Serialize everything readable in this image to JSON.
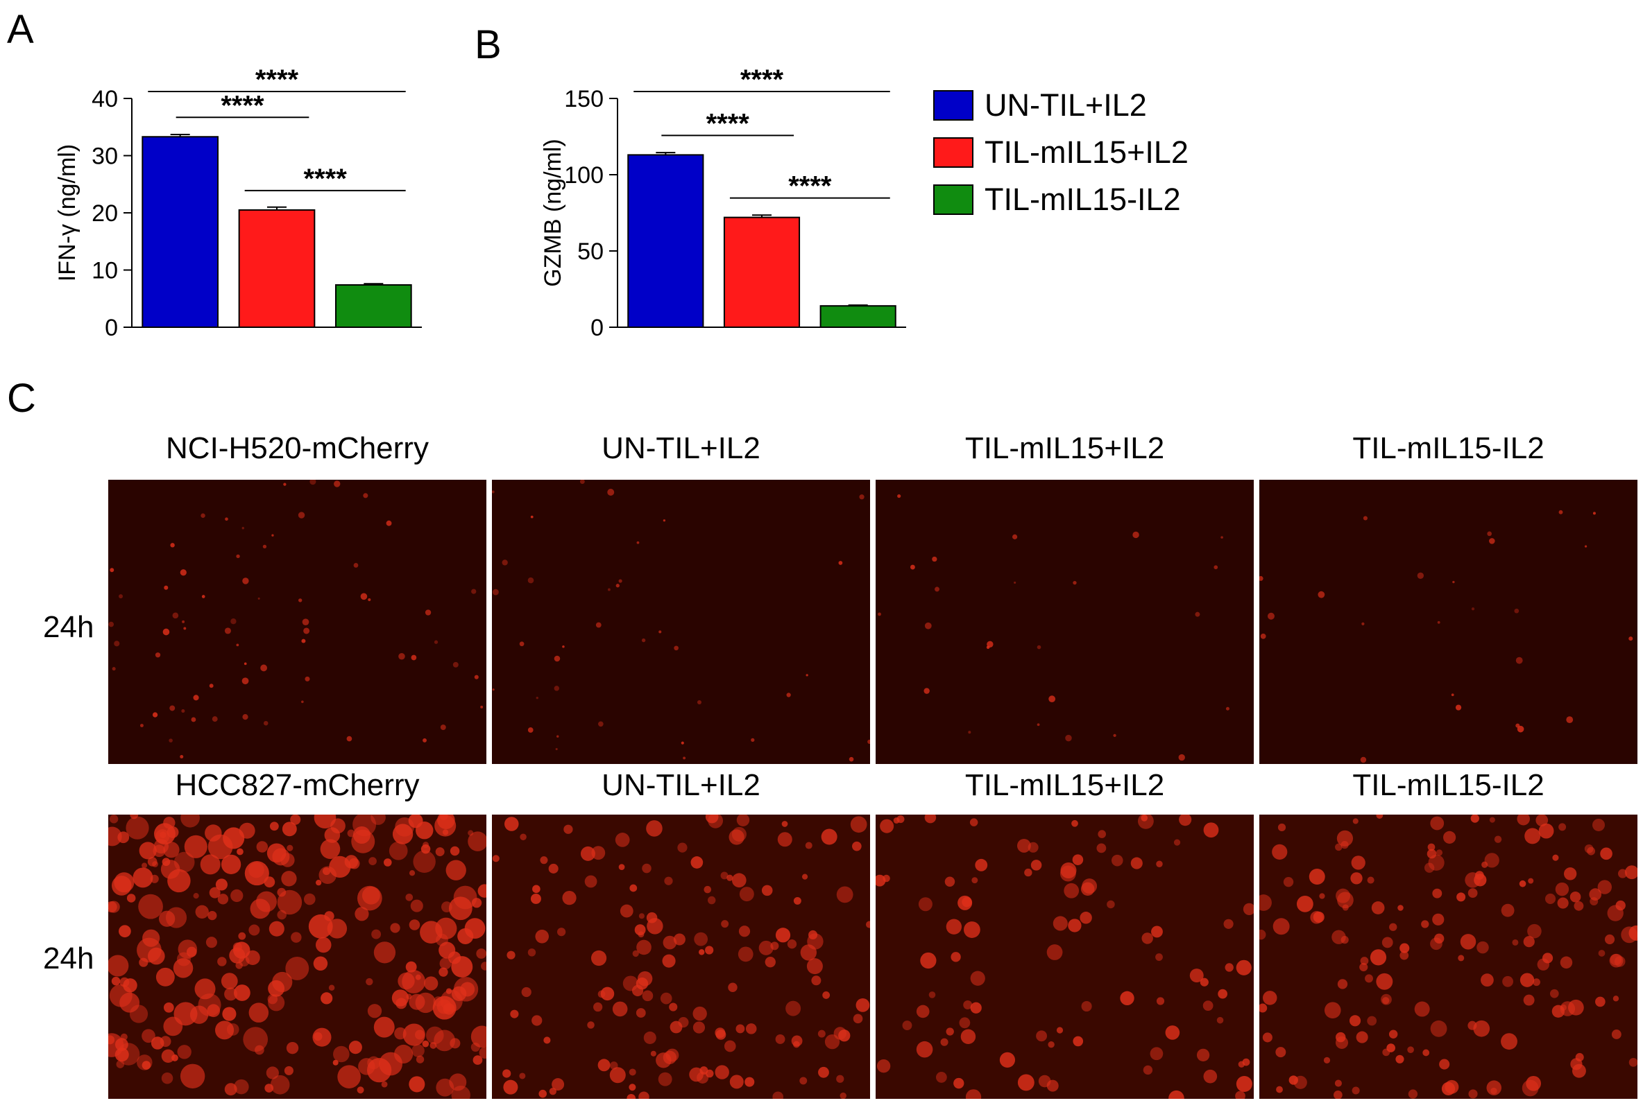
{
  "panels": {
    "a": "A",
    "b": "B",
    "c": "C"
  },
  "chart_data": [
    {
      "type": "bar",
      "panel": "A",
      "ylabel": "IFN-γ (ng/ml)",
      "categories": [
        "UN-TIL+IL2",
        "TIL-mIL15+IL2",
        "TIL-mIL15-IL2"
      ],
      "values": [
        33.3,
        20.5,
        7.4
      ],
      "errors": [
        0.4,
        0.5,
        0.2
      ],
      "colors": [
        "#0000c8",
        "#ff1a1a",
        "#108c10"
      ],
      "ylim": [
        0,
        40
      ],
      "yticks": [
        "0",
        "10",
        "20",
        "30",
        "40"
      ],
      "significance": [
        {
          "from": 0,
          "to": 1,
          "label": "****"
        },
        {
          "from": 0,
          "to": 2,
          "label": "****"
        },
        {
          "from": 1,
          "to": 2,
          "label": "****"
        }
      ]
    },
    {
      "type": "bar",
      "panel": "B",
      "ylabel": "GZMB (ng/ml)",
      "categories": [
        "UN-TIL+IL2",
        "TIL-mIL15+IL2",
        "TIL-mIL15-IL2"
      ],
      "values": [
        113,
        72,
        14
      ],
      "errors": [
        1.5,
        1.5,
        0.5
      ],
      "colors": [
        "#0000c8",
        "#ff1a1a",
        "#108c10"
      ],
      "ylim": [
        0,
        150
      ],
      "yticks": [
        "0",
        "50",
        "100",
        "150"
      ],
      "significance": [
        {
          "from": 0,
          "to": 1,
          "label": "****"
        },
        {
          "from": 0,
          "to": 2,
          "label": "****"
        },
        {
          "from": 1,
          "to": 2,
          "label": "****"
        }
      ]
    }
  ],
  "legend": [
    {
      "label": "UN-TIL+IL2",
      "color": "#0000c8"
    },
    {
      "label": "TIL-mIL15+IL2",
      "color": "#ff1a1a"
    },
    {
      "label": "TIL-mIL15-IL2",
      "color": "#108c10"
    }
  ],
  "microscopy": {
    "rows": [
      {
        "time": "24h",
        "titles": [
          "NCI-H520-mCherry",
          "UN-TIL+IL2",
          "TIL-mIL15+IL2",
          "TIL-mIL15-IL2"
        ],
        "density": [
          0.55,
          0.3,
          0.2,
          0.2
        ]
      },
      {
        "time": "24h",
        "titles": [
          "HCC827-mCherry",
          "UN-TIL+IL2",
          "TIL-mIL15+IL2",
          "TIL-mIL15-IL2"
        ],
        "density": [
          1.0,
          0.55,
          0.35,
          0.6
        ]
      }
    ],
    "bg_color": "#2a0400",
    "cell_color": "#e0301a"
  }
}
